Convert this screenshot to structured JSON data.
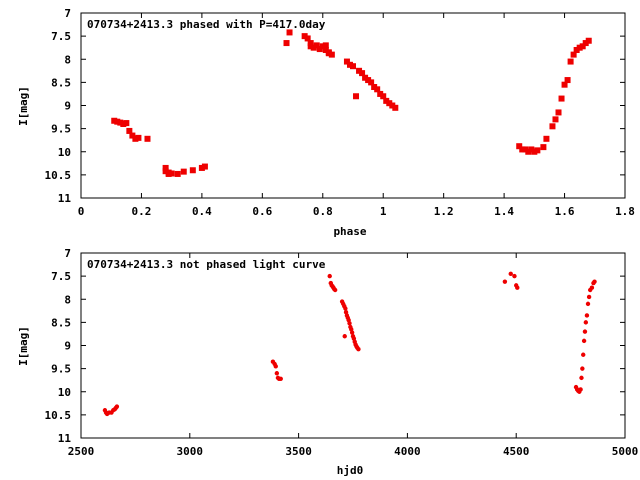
{
  "chart_data": [
    {
      "type": "scatter",
      "title": "070734+2413.3 phased with P=417.0day",
      "xlabel": "phase",
      "ylabel": "I[mag]",
      "xlim": [
        0,
        1.8
      ],
      "ylim": [
        7,
        11
      ],
      "y_inverted": true,
      "x_ticks": [
        "0",
        "0.2",
        "0.4",
        "0.6",
        "0.8",
        "1",
        "1.2",
        "1.4",
        "1.6",
        "1.8"
      ],
      "y_ticks": [
        "7",
        "7.5",
        "8",
        "8.5",
        "9",
        "9.5",
        "10",
        "10.5",
        "11"
      ],
      "marker_color": "#ee0000",
      "series": [
        {
          "x": [
            0.11,
            0.12,
            0.13,
            0.14,
            0.15,
            0.16,
            0.17,
            0.18,
            0.19,
            0.22,
            0.28,
            0.28,
            0.29,
            0.29,
            0.3,
            0.32,
            0.34,
            0.37,
            0.4,
            0.41,
            0.68,
            0.69,
            0.74,
            0.75,
            0.76,
            0.76,
            0.77,
            0.78,
            0.79,
            0.8,
            0.81,
            0.81,
            0.82,
            0.82,
            0.83,
            0.88,
            0.89,
            0.9,
            0.91,
            0.92,
            0.93,
            0.94,
            0.95,
            0.96,
            0.97,
            0.98,
            0.99,
            1.0,
            1.01,
            1.02,
            1.03,
            1.04,
            1.45,
            1.46,
            1.47,
            1.48,
            1.49,
            1.5,
            1.51,
            1.53,
            1.54,
            1.56,
            1.57,
            1.58,
            1.59,
            1.6,
            1.61,
            1.62,
            1.63,
            1.64,
            1.65,
            1.66,
            1.67,
            1.68
          ],
          "y": [
            9.33,
            9.35,
            9.37,
            9.4,
            9.38,
            9.55,
            9.65,
            9.72,
            9.7,
            9.72,
            10.35,
            10.42,
            10.48,
            10.45,
            10.47,
            10.48,
            10.43,
            10.4,
            10.35,
            10.32,
            7.65,
            7.42,
            7.5,
            7.55,
            7.65,
            7.72,
            7.75,
            7.7,
            7.78,
            7.72,
            7.8,
            7.7,
            7.87,
            7.85,
            7.9,
            8.05,
            8.12,
            8.15,
            8.8,
            8.25,
            8.3,
            8.4,
            8.45,
            8.5,
            8.6,
            8.65,
            8.75,
            8.8,
            8.9,
            8.95,
            9.0,
            9.05,
            9.88,
            9.95,
            9.95,
            10.0,
            9.95,
            10.0,
            9.97,
            9.9,
            9.72,
            9.45,
            9.3,
            9.15,
            8.85,
            8.55,
            8.45,
            8.05,
            7.9,
            7.8,
            7.75,
            7.72,
            7.65,
            7.6
          ]
        }
      ]
    },
    {
      "type": "scatter",
      "title": "070734+2413.3 not phased light curve",
      "xlabel": "hjd0",
      "ylabel": "I[mag]",
      "xlim": [
        2500,
        5000
      ],
      "ylim": [
        7,
        11
      ],
      "y_inverted": true,
      "x_ticks": [
        "2500",
        "3000",
        "3500",
        "4000",
        "4500",
        "5000"
      ],
      "y_ticks": [
        "7",
        "7.5",
        "8",
        "8.5",
        "9",
        "9.5",
        "10",
        "10.5",
        "11"
      ],
      "marker_color": "#ee0000",
      "series": [
        {
          "x": [
            2610,
            2615,
            2620,
            2630,
            2640,
            2648,
            2655,
            2660,
            2665,
            3382,
            3390,
            3395,
            3400,
            3405,
            3410,
            3418,
            3643,
            3648,
            3652,
            3656,
            3660,
            3664,
            3668,
            3700,
            3705,
            3710,
            3715,
            3718,
            3722,
            3726,
            3730,
            3734,
            3738,
            3742,
            3746,
            3750,
            3754,
            3758,
            3762,
            3766,
            3770,
            3775,
            3712,
            4448,
            4475,
            4492,
            4500,
            4505,
            4775,
            4780,
            4785,
            4790,
            4796,
            4800,
            4804,
            4808,
            4812,
            4816,
            4820,
            4825,
            4830,
            4835,
            4840,
            4848,
            4855,
            4860
          ],
          "y": [
            10.4,
            10.45,
            10.48,
            10.45,
            10.45,
            10.4,
            10.38,
            10.35,
            10.32,
            9.35,
            9.4,
            9.45,
            9.6,
            9.7,
            9.72,
            9.72,
            7.5,
            7.65,
            7.7,
            7.72,
            7.75,
            7.78,
            7.8,
            8.05,
            8.1,
            8.15,
            8.2,
            8.28,
            8.35,
            8.4,
            8.45,
            8.52,
            8.6,
            8.65,
            8.72,
            8.8,
            8.85,
            8.92,
            8.98,
            9.02,
            9.05,
            9.08,
            8.8,
            7.62,
            7.45,
            7.5,
            7.7,
            7.75,
            9.9,
            9.95,
            9.98,
            10.0,
            9.95,
            9.7,
            9.5,
            9.2,
            8.9,
            8.7,
            8.5,
            8.35,
            8.1,
            7.95,
            7.8,
            7.75,
            7.65,
            7.62
          ]
        }
      ]
    }
  ]
}
